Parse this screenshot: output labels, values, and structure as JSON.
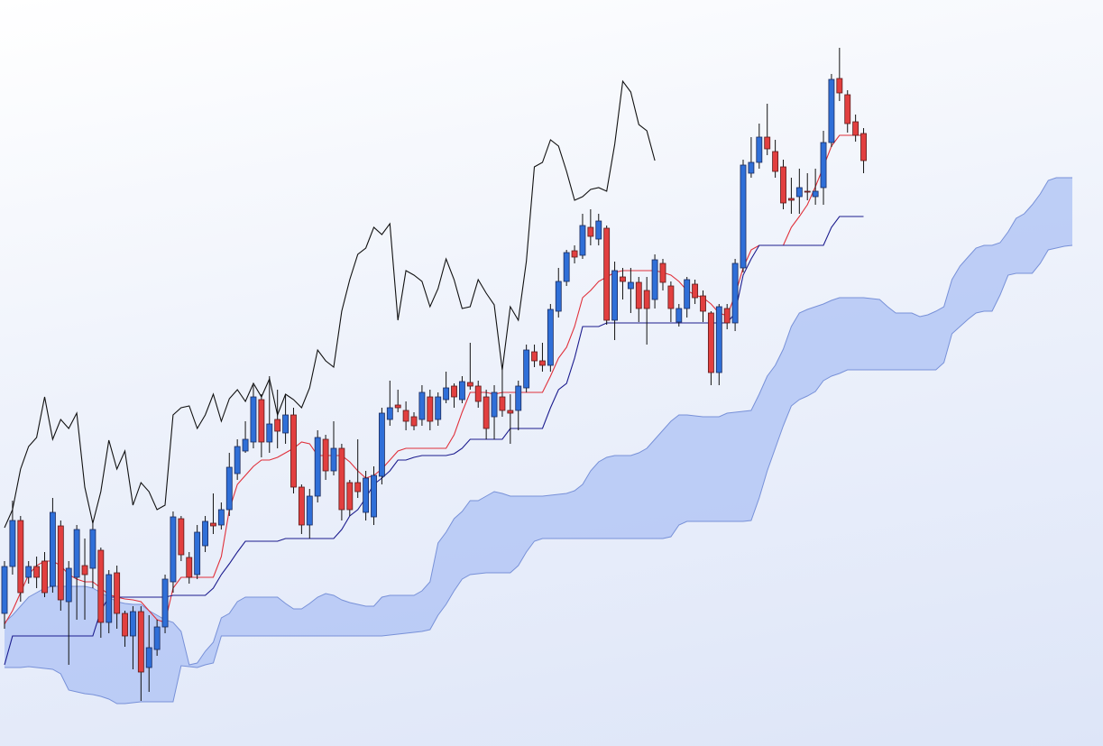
{
  "chart_data": {
    "type": "candlestick",
    "categories": [
      null,
      null,
      null,
      null,
      null,
      null,
      null,
      null,
      null,
      null,
      null,
      null,
      null,
      null,
      null,
      null,
      null,
      null,
      null,
      null,
      null,
      null,
      null,
      null,
      null,
      null,
      null,
      null,
      null,
      null,
      null,
      null,
      null,
      null,
      null,
      null,
      null,
      null,
      null,
      null,
      null,
      null,
      null,
      null,
      null,
      null,
      null,
      null,
      null,
      null,
      null,
      null,
      null,
      null,
      null,
      null,
      null,
      null,
      null,
      null,
      null,
      null,
      null,
      null,
      null,
      null,
      null,
      null,
      null,
      null,
      null,
      null,
      null,
      null,
      null,
      null,
      null,
      null,
      null,
      null,
      null,
      null,
      null,
      null,
      null,
      null,
      null,
      null,
      null,
      null,
      null,
      null,
      null,
      null,
      null,
      null,
      null,
      null,
      null,
      null,
      null,
      null,
      null,
      null,
      null,
      null,
      null,
      null,
      null,
      null,
      null,
      null,
      null,
      null,
      null,
      null,
      null,
      null,
      null,
      null,
      null,
      null,
      null,
      null,
      null,
      null,
      null,
      null,
      null,
      null,
      null,
      null,
      null,
      null
    ],
    "ylim": [
      0,
      827
    ],
    "up_color": "#2f6fd8",
    "down_color": "#e23f3f",
    "open": [
      147,
      199,
      250,
      187,
      199,
      205,
      177,
      244,
      160,
      187,
      200,
      197,
      217,
      137,
      192,
      147,
      122,
      149,
      87,
      107,
      132,
      182,
      252,
      209,
      190,
      222,
      247,
      245,
      262,
      302,
      327,
      337,
      384,
      337,
      362,
      347,
      367,
      287,
      245,
      277,
      340,
      305,
      330,
      292,
      292,
      259,
      254,
      299,
      362,
      378,
      372,
      365,
      362,
      387,
      362,
      384,
      399,
      384,
      403,
      399,
      387,
      365,
      387,
      372,
      372,
      397,
      437,
      427,
      422,
      482,
      515,
      549,
      544,
      575,
      562,
      574,
      472,
      520,
      507,
      514,
      505,
      495,
      535,
      510,
      470,
      485,
      512,
      499,
      480,
      414,
      485,
      469,
      530,
      635,
      647,
      675,
      659,
      642,
      607,
      609,
      615,
      609,
      619,
      669,
      740,
      722,
      692,
      679,
      null,
      null,
      null,
      null,
      null,
      null,
      null,
      null,
      null,
      null,
      null,
      null,
      null,
      null,
      null,
      null,
      null,
      null,
      null,
      null,
      null,
      null,
      null,
      null,
      null,
      null
    ],
    "high": [
      205,
      272,
      255,
      205,
      210,
      215,
      275,
      250,
      205,
      245,
      230,
      250,
      220,
      195,
      200,
      150,
      155,
      155,
      145,
      140,
      190,
      260,
      255,
      215,
      245,
      255,
      280,
      270,
      325,
      340,
      360,
      400,
      390,
      410,
      395,
      390,
      375,
      290,
      285,
      350,
      345,
      360,
      335,
      295,
      340,
      305,
      310,
      375,
      405,
      395,
      382,
      370,
      400,
      395,
      392,
      415,
      402,
      410,
      447,
      405,
      395,
      400,
      420,
      390,
      405,
      445,
      445,
      447,
      490,
      530,
      550,
      555,
      590,
      595,
      590,
      577,
      537,
      530,
      530,
      520,
      520,
      545,
      540,
      515,
      490,
      520,
      517,
      505,
      482,
      490,
      490,
      540,
      650,
      675,
      690,
      712,
      672,
      650,
      630,
      640,
      635,
      640,
      682,
      745,
      774,
      727,
      700,
      685,
      null,
      null,
      null,
      null,
      null,
      null,
      null,
      null,
      null,
      null,
      null,
      null,
      null,
      null,
      null,
      null,
      null,
      null,
      null,
      null,
      null,
      null,
      null,
      null,
      null,
      null
    ],
    "low": [
      130,
      190,
      160,
      180,
      175,
      165,
      170,
      150,
      90,
      140,
      140,
      175,
      120,
      125,
      130,
      110,
      85,
      50,
      60,
      100,
      125,
      170,
      205,
      180,
      185,
      215,
      235,
      240,
      255,
      295,
      325,
      330,
      320,
      325,
      330,
      335,
      280,
      235,
      230,
      270,
      295,
      300,
      250,
      255,
      275,
      250,
      245,
      290,
      355,
      370,
      350,
      350,
      355,
      350,
      355,
      380,
      375,
      380,
      395,
      375,
      340,
      340,
      365,
      335,
      350,
      392,
      420,
      415,
      415,
      475,
      510,
      535,
      540,
      555,
      555,
      467,
      450,
      495,
      480,
      470,
      445,
      485,
      505,
      470,
      465,
      475,
      490,
      470,
      400,
      400,
      462,
      460,
      525,
      630,
      640,
      655,
      630,
      595,
      590,
      590,
      605,
      600,
      600,
      664,
      715,
      680,
      670,
      635,
      null,
      null,
      null,
      null,
      null,
      null,
      null,
      null,
      null,
      null,
      null,
      null,
      null,
      null,
      null,
      null,
      null,
      null,
      null,
      null,
      null,
      null,
      null,
      null,
      null,
      null
    ],
    "close": [
      199,
      250,
      170,
      199,
      187,
      170,
      259,
      162,
      197,
      240,
      190,
      240,
      137,
      190,
      147,
      122,
      149,
      82,
      109,
      132,
      185,
      254,
      212,
      187,
      237,
      249,
      244,
      262,
      309,
      332,
      340,
      387,
      337,
      357,
      349,
      367,
      287,
      245,
      277,
      342,
      305,
      330,
      262,
      262,
      282,
      297,
      300,
      369,
      375,
      375,
      360,
      355,
      392,
      360,
      387,
      397,
      387,
      404,
      399,
      382,
      352,
      392,
      372,
      369,
      399,
      439,
      427,
      422,
      484,
      515,
      547,
      542,
      577,
      565,
      582,
      472,
      527,
      515,
      514,
      485,
      485,
      539,
      514,
      485,
      485,
      517,
      497,
      482,
      414,
      487,
      469,
      535,
      644,
      647,
      675,
      662,
      637,
      602,
      605,
      619,
      614,
      615,
      669,
      739,
      724,
      690,
      677,
      649,
      null,
      null,
      null,
      null,
      null,
      null,
      null,
      null,
      null,
      null,
      null,
      null,
      null,
      null,
      null,
      null,
      null,
      null,
      null,
      null,
      null,
      null,
      null,
      null,
      null,
      null
    ],
    "lines": [
      {
        "color": "#e0303a",
        "values": [
          135,
          150,
          170,
          190,
          200,
          205,
          205,
          200,
          190,
          185,
          182,
          182,
          175,
          168,
          165,
          163,
          162,
          160,
          150,
          140,
          137,
          175,
          187,
          187,
          187,
          187,
          187,
          210,
          262,
          290,
          300,
          310,
          317,
          317,
          320,
          325,
          330,
          337,
          335,
          322,
          322,
          322,
          322,
          315,
          305,
          297,
          300,
          307,
          317,
          327,
          330,
          330,
          330,
          330,
          330,
          330,
          345,
          370,
          392,
          392,
          392,
          390,
          392,
          392,
          392,
          392,
          392,
          392,
          410,
          430,
          442,
          465,
          497,
          505,
          515,
          520,
          525,
          527,
          527,
          527,
          527,
          527,
          525,
          522,
          515,
          505,
          500,
          497,
          490,
          480,
          477,
          500,
          530,
          550,
          555,
          555,
          555,
          555,
          575,
          587,
          600,
          620,
          642,
          665,
          677,
          677,
          677,
          677,
          null,
          null,
          null,
          null,
          null,
          null,
          null,
          null,
          null,
          null,
          null,
          null,
          null,
          null,
          null,
          null,
          null,
          null,
          null,
          null,
          null,
          null,
          null,
          null,
          null,
          null
        ]
      },
      {
        "color": "#1c1c8e",
        "values": [
          90,
          122,
          122,
          122,
          122,
          122,
          122,
          122,
          122,
          122,
          122,
          122,
          150,
          165,
          165,
          165,
          165,
          165,
          165,
          165,
          165,
          167,
          167,
          167,
          167,
          167,
          175,
          190,
          202,
          215,
          227,
          227,
          227,
          227,
          227,
          230,
          230,
          230,
          230,
          230,
          230,
          230,
          240,
          255,
          262,
          275,
          290,
          297,
          305,
          317,
          317,
          320,
          322,
          322,
          322,
          322,
          324,
          330,
          340,
          340,
          340,
          340,
          340,
          352,
          352,
          352,
          352,
          352,
          375,
          395,
          402,
          430,
          465,
          465,
          465,
          469,
          469,
          469,
          469,
          469,
          469,
          469,
          469,
          469,
          469,
          469,
          469,
          469,
          469,
          469,
          469,
          480,
          522,
          540,
          555,
          555,
          555,
          555,
          555,
          555,
          555,
          555,
          555,
          575,
          587,
          587,
          587,
          587,
          null,
          null,
          null,
          null,
          null,
          null,
          null,
          null,
          null,
          null,
          null,
          null,
          null,
          null,
          null,
          null,
          null,
          null,
          null,
          null,
          null,
          null,
          null,
          null,
          null,
          null
        ]
      },
      {
        "color": "#111111",
        "values": [
          242,
          262,
          307,
          332,
          342,
          387,
          340,
          362,
          352,
          369,
          287,
          247,
          282,
          339,
          307,
          327,
          267,
          292,
          282,
          262,
          267,
          367,
          375,
          377,
          352,
          367,
          390,
          360,
          385,
          395,
          382,
          402,
          387,
          407,
          367,
          390,
          384,
          375,
          397,
          439,
          427,
          420,
          482,
          517,
          545,
          552,
          575,
          567,
          579,
          472,
          527,
          522,
          515,
          487,
          507,
          540,
          517,
          485,
          487,
          517,
          502,
          489,
          417,
          487,
          472,
          537,
          642,
          647,
          672,
          665,
          637,
          605,
          609,
          617,
          619,
          615,
          667,
          737,
          725,
          689,
          682,
          649,
          null,
          null,
          null,
          null,
          null,
          null,
          null,
          null,
          null,
          null,
          null,
          null,
          null,
          null,
          null,
          null,
          null,
          null,
          null,
          null,
          null,
          null,
          null,
          null,
          null,
          null,
          null,
          null,
          null,
          null,
          null,
          null,
          null,
          null,
          null,
          null,
          null,
          null,
          null,
          null,
          null,
          null,
          null,
          null,
          null,
          null,
          null,
          null
        ]
      }
    ],
    "cloud": {
      "color": "#b4c7f5",
      "edge_color": "#7891d8",
      "upper": [
        137,
        145,
        155,
        165,
        170,
        175,
        177,
        177,
        177,
        177,
        177,
        175,
        170,
        165,
        160,
        158,
        157,
        157,
        150,
        145,
        140,
        137,
        127,
        90,
        92,
        105,
        115,
        142,
        147,
        160,
        165,
        165,
        165,
        165,
        165,
        158,
        152,
        152,
        158,
        165,
        169,
        167,
        162,
        159,
        157,
        155,
        155,
        165,
        167,
        167,
        167,
        167,
        172,
        182,
        225,
        237,
        252,
        260,
        272,
        272,
        277,
        282,
        280,
        277,
        277,
        277,
        277,
        277,
        278,
        279,
        280,
        283,
        290,
        305,
        315,
        320,
        322,
        322,
        322,
        325,
        330,
        340,
        350,
        360,
        367,
        367,
        366,
        365,
        365,
        365,
        369,
        370,
        371,
        372,
        390,
        410,
        422,
        440,
        465,
        480,
        484,
        487,
        490,
        494,
        497,
        497,
        497,
        497,
        496,
        495,
        487,
        480,
        480,
        480,
        476,
        478,
        482,
        487,
        517,
        532,
        542,
        552,
        555,
        555,
        558,
        570,
        585,
        590,
        600,
        612,
        627,
        630,
        630,
        630
      ],
      "lower": [
        87,
        87,
        87,
        88,
        87,
        86,
        85,
        80,
        62,
        60,
        58,
        57,
        55,
        52,
        47,
        47,
        48,
        49,
        49,
        49,
        49,
        49,
        89,
        88,
        87,
        90,
        92,
        122,
        122,
        122,
        122,
        122,
        122,
        122,
        122,
        122,
        122,
        122,
        122,
        122,
        122,
        122,
        122,
        122,
        122,
        122,
        122,
        122,
        123,
        124,
        125,
        126,
        127,
        129,
        145,
        157,
        172,
        185,
        190,
        191,
        192,
        192,
        192,
        192,
        200,
        215,
        227,
        230,
        230,
        230,
        230,
        230,
        230,
        230,
        230,
        230,
        230,
        230,
        230,
        230,
        230,
        230,
        230,
        232,
        245,
        249,
        249,
        249,
        249,
        249,
        249,
        249,
        249,
        250,
        275,
        305,
        330,
        355,
        377,
        384,
        388,
        393,
        405,
        410,
        413,
        417,
        417,
        417,
        417,
        417,
        417,
        417,
        417,
        417,
        417,
        417,
        417,
        425,
        457,
        465,
        473,
        480,
        482,
        482,
        500,
        522,
        524,
        524,
        524,
        535,
        550,
        552,
        554,
        555
      ]
    }
  }
}
